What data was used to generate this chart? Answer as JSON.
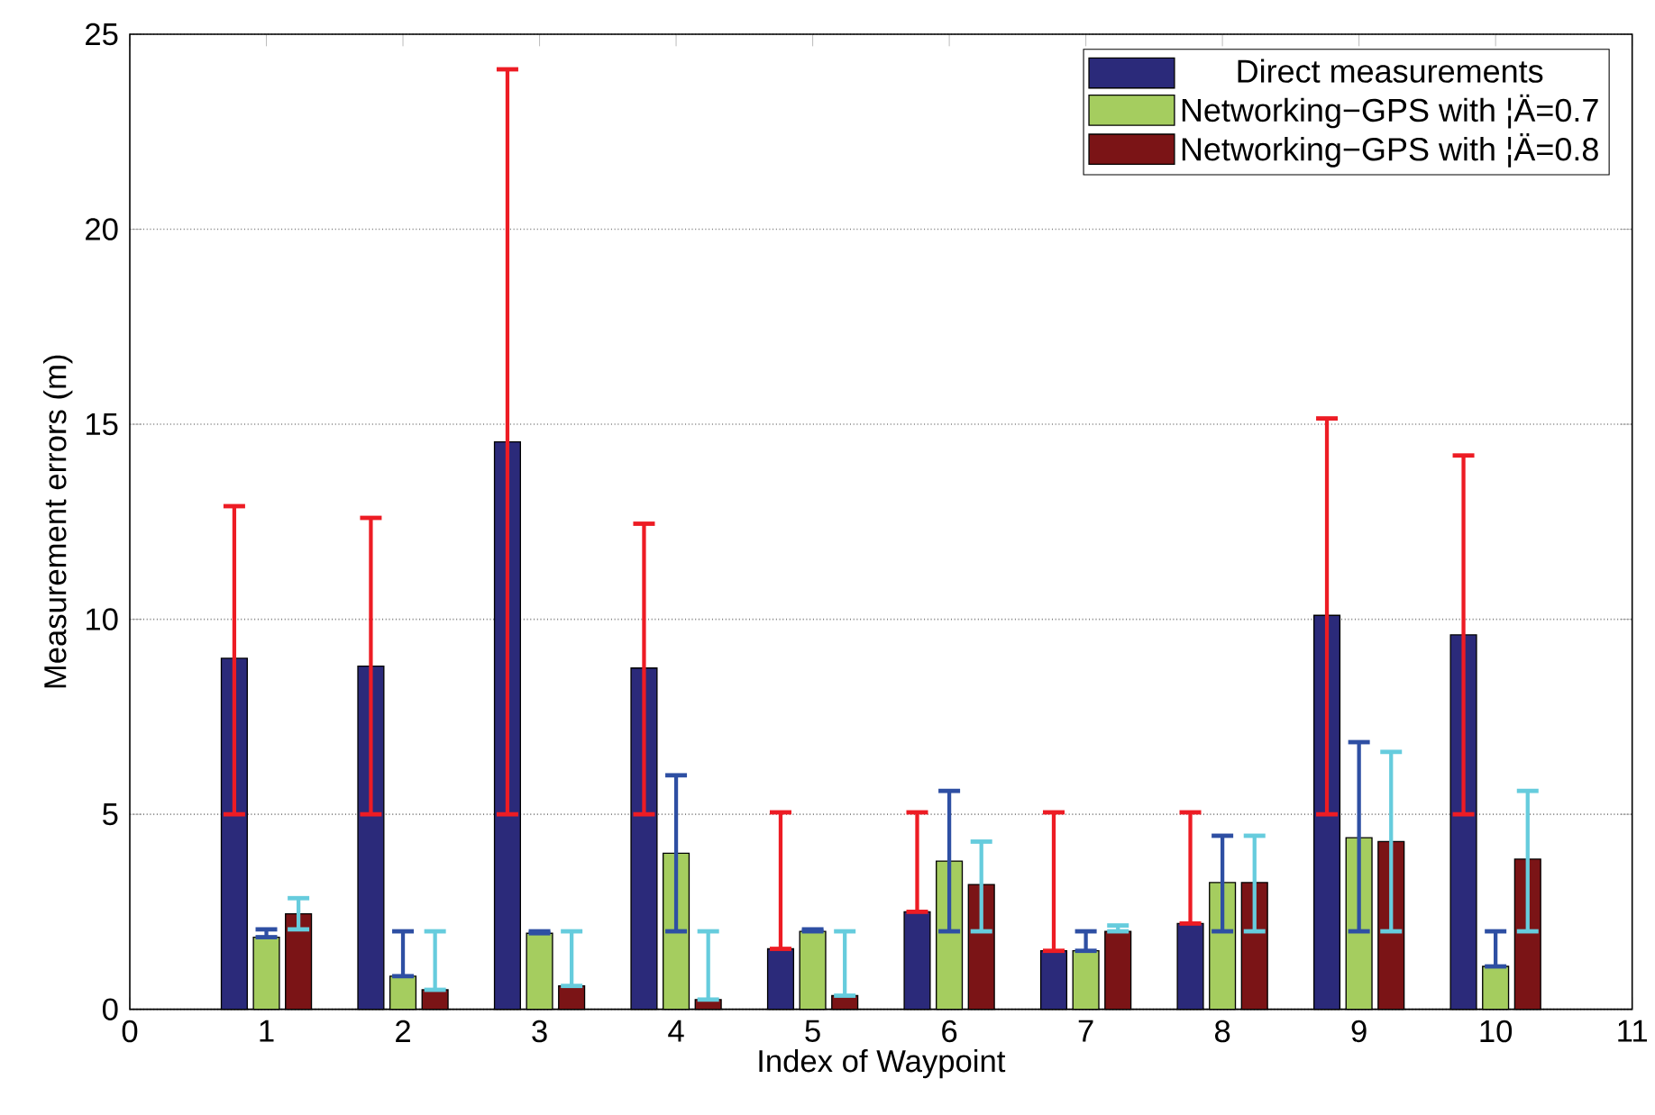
{
  "chart_data": {
    "type": "bar",
    "xlabel": "Index of Waypoint",
    "ylabel": "Measurement errors (m)",
    "x": [
      1,
      2,
      3,
      4,
      5,
      6,
      7,
      8,
      9,
      10
    ],
    "series": [
      {
        "name": "Direct measurements",
        "color": "#2b2a7a",
        "values": [
          9.0,
          8.8,
          14.55,
          8.75,
          1.55,
          2.5,
          1.5,
          2.2,
          10.1,
          9.6
        ],
        "errors": [
          [
            5,
            12.9
          ],
          [
            5,
            12.6
          ],
          [
            5,
            24.1
          ],
          [
            5,
            12.45
          ],
          [
            1.55,
            5.05
          ],
          [
            2.5,
            5.05
          ],
          [
            1.5,
            5.05
          ],
          [
            2.2,
            5.05
          ],
          [
            5,
            15.15
          ],
          [
            5,
            14.2
          ]
        ]
      },
      {
        "name": "Networking−GPS with ¦Ä=0.7",
        "color": "#a5cd5f",
        "values": [
          1.85,
          0.85,
          1.95,
          4.0,
          2.0,
          3.8,
          1.5,
          3.25,
          4.4,
          1.1
        ],
        "errors": [
          [
            1.85,
            2.05
          ],
          [
            0.85,
            2.0
          ],
          [
            1.95,
            2.0
          ],
          [
            2.0,
            6.0
          ],
          [
            2.0,
            2.05
          ],
          [
            2.0,
            5.6
          ],
          [
            1.5,
            2.0
          ],
          [
            2.0,
            4.45
          ],
          [
            2.0,
            6.85
          ],
          [
            1.1,
            2.0
          ]
        ]
      },
      {
        "name": "Networking−GPS with ¦Ä=0.8",
        "color": "#7b1416",
        "values": [
          2.45,
          0.5,
          0.6,
          0.25,
          0.35,
          3.2,
          2.0,
          3.25,
          4.3,
          3.85
        ],
        "errors": [
          [
            2.05,
            2.85
          ],
          [
            0.5,
            2.0
          ],
          [
            0.6,
            2.0
          ],
          [
            0.25,
            2.0
          ],
          [
            0.35,
            2.0
          ],
          [
            2.0,
            4.3
          ],
          [
            2.0,
            2.15
          ],
          [
            2.0,
            4.45
          ],
          [
            2.0,
            6.6
          ],
          [
            2.0,
            5.6
          ]
        ]
      }
    ],
    "xlim": [
      0,
      11
    ],
    "xticks": [
      0,
      1,
      2,
      3,
      4,
      5,
      6,
      7,
      8,
      9,
      10,
      11
    ],
    "ylim": [
      0,
      25
    ],
    "yticks": [
      0,
      5,
      10,
      15,
      20,
      25
    ],
    "grid": "y",
    "legend": "top right"
  }
}
